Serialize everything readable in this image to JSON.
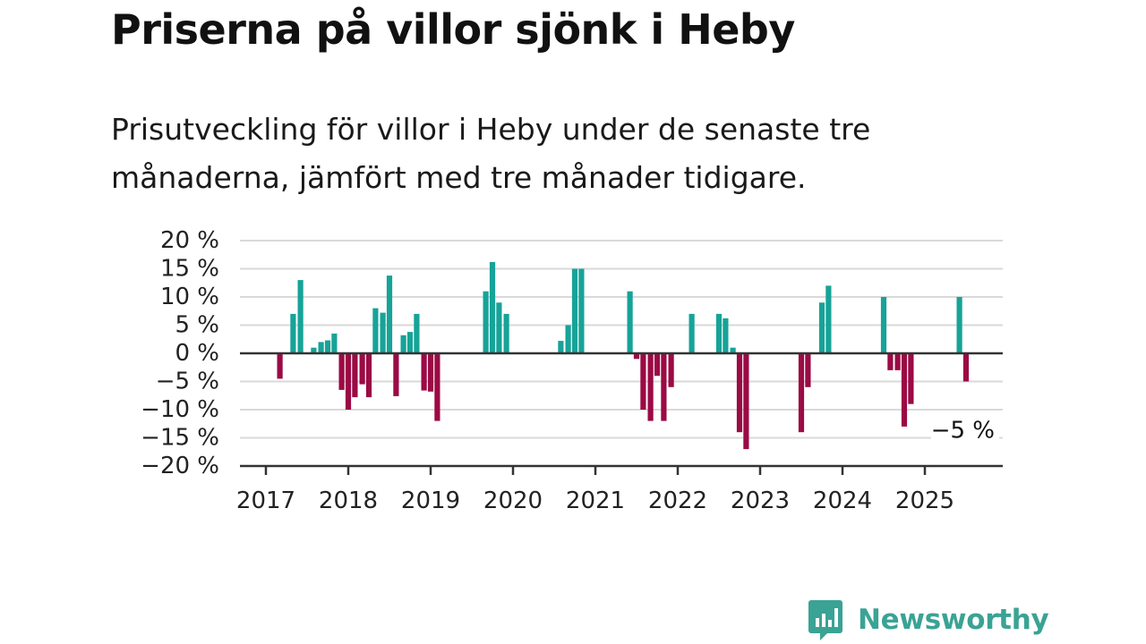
{
  "title": "Priserna på villor sjönk i Heby",
  "subtitle": "Prisutveckling för villor i Heby under de senaste tre månaderna, jämfört med tre månader tidigare.",
  "logo": {
    "text": "Newsworthy",
    "icon": "newsworthy-logo-icon",
    "color": "#3aa394"
  },
  "colors": {
    "positive": "#17a398",
    "negative": "#9b0a45",
    "grid": "#d9d9d9",
    "axis": "#333333"
  },
  "chart_data": {
    "type": "bar",
    "ylim": [
      -20,
      20
    ],
    "yticks": [
      20,
      15,
      10,
      5,
      0,
      -5,
      -10,
      -15,
      -20
    ],
    "ytick_labels": [
      "20 %",
      "15 %",
      "10 %",
      "5 %",
      "0 %",
      "−5 %",
      "−10 %",
      "−15 %",
      "−20 %"
    ],
    "xlim": [
      2017.0,
      2025.9
    ],
    "xticks": [
      2017,
      2018,
      2019,
      2020,
      2021,
      2022,
      2023,
      2024,
      2025
    ],
    "xtick_labels": [
      "2017",
      "2018",
      "2019",
      "2020",
      "2021",
      "2022",
      "2023",
      "2024",
      "2025"
    ],
    "annotation": {
      "text": "−5 %",
      "x": 2025.5,
      "y": -5
    },
    "series": [
      {
        "points": [
          {
            "x": 2017.17,
            "y": -4.5
          },
          {
            "x": 2017.33,
            "y": 7
          },
          {
            "x": 2017.42,
            "y": 13
          },
          {
            "x": 2017.58,
            "y": 1
          },
          {
            "x": 2017.67,
            "y": 2
          },
          {
            "x": 2017.75,
            "y": 2.3
          },
          {
            "x": 2017.83,
            "y": 3.5
          },
          {
            "x": 2017.92,
            "y": -6.5
          },
          {
            "x": 2018.0,
            "y": -10
          },
          {
            "x": 2018.08,
            "y": -7.8
          },
          {
            "x": 2018.17,
            "y": -5.5
          },
          {
            "x": 2018.25,
            "y": -7.8
          },
          {
            "x": 2018.33,
            "y": 8
          },
          {
            "x": 2018.42,
            "y": 7.2
          },
          {
            "x": 2018.5,
            "y": 13.8
          },
          {
            "x": 2018.58,
            "y": -7.6
          },
          {
            "x": 2018.67,
            "y": 3.2
          },
          {
            "x": 2018.75,
            "y": 3.8
          },
          {
            "x": 2018.83,
            "y": 7
          },
          {
            "x": 2018.92,
            "y": -6.6
          },
          {
            "x": 2019.0,
            "y": -6.8
          },
          {
            "x": 2019.08,
            "y": -12
          },
          {
            "x": 2019.67,
            "y": 11
          },
          {
            "x": 2019.75,
            "y": 16.2
          },
          {
            "x": 2019.83,
            "y": 9
          },
          {
            "x": 2019.92,
            "y": 7
          },
          {
            "x": 2020.58,
            "y": 2.2
          },
          {
            "x": 2020.67,
            "y": 5
          },
          {
            "x": 2020.75,
            "y": 15
          },
          {
            "x": 2020.83,
            "y": 15
          },
          {
            "x": 2021.42,
            "y": 11
          },
          {
            "x": 2021.5,
            "y": -1
          },
          {
            "x": 2021.58,
            "y": -10
          },
          {
            "x": 2021.67,
            "y": -12
          },
          {
            "x": 2021.75,
            "y": -4
          },
          {
            "x": 2021.83,
            "y": -12
          },
          {
            "x": 2021.92,
            "y": -6
          },
          {
            "x": 2022.17,
            "y": 7
          },
          {
            "x": 2022.5,
            "y": 7
          },
          {
            "x": 2022.58,
            "y": 6.2
          },
          {
            "x": 2022.67,
            "y": 1
          },
          {
            "x": 2022.75,
            "y": -14
          },
          {
            "x": 2022.83,
            "y": -17
          },
          {
            "x": 2023.5,
            "y": -14
          },
          {
            "x": 2023.58,
            "y": -6
          },
          {
            "x": 2023.75,
            "y": 9
          },
          {
            "x": 2023.83,
            "y": 12
          },
          {
            "x": 2024.5,
            "y": 10
          },
          {
            "x": 2024.58,
            "y": -3
          },
          {
            "x": 2024.67,
            "y": -3
          },
          {
            "x": 2024.75,
            "y": -13
          },
          {
            "x": 2024.83,
            "y": -9
          },
          {
            "x": 2025.42,
            "y": 10
          },
          {
            "x": 2025.5,
            "y": -5
          }
        ]
      }
    ]
  }
}
